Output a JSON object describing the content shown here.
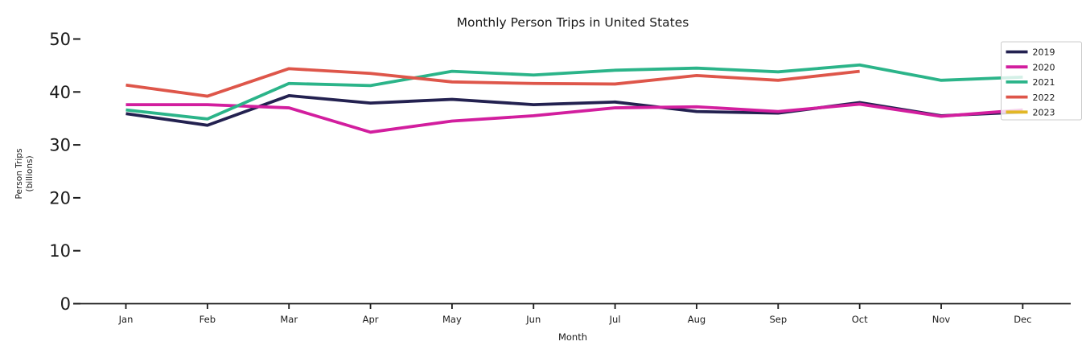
{
  "figure": {
    "background": "#ffffff",
    "text_color": "#1a1a1a",
    "axis_color": "#1a1a1a",
    "legend_border_color": "#cccccc"
  },
  "chart_data": {
    "type": "line",
    "title": "Monthly Person Trips in United States",
    "xlabel": "Month",
    "ylabel_lines": [
      "Person Trips",
      "(billions)"
    ],
    "categories": [
      "Jan",
      "Feb",
      "Mar",
      "Apr",
      "May",
      "Jun",
      "Jul",
      "Aug",
      "Sep",
      "Oct",
      "Nov",
      "Dec"
    ],
    "yticks": [
      0,
      10,
      20,
      30,
      40,
      50
    ],
    "ylim": [
      0,
      50
    ],
    "grid": false,
    "legend_position": "upper right",
    "legend_entries": [
      "2019",
      "2020",
      "2021",
      "2022",
      "2023"
    ],
    "series": [
      {
        "name": "2019",
        "color": "#232150",
        "values": [
          35.9,
          33.7,
          39.3,
          37.9,
          38.6,
          37.6,
          38.1,
          36.3,
          36.0,
          38.0,
          35.5,
          36.2
        ]
      },
      {
        "name": "2020",
        "color": "#d21e9e",
        "values": [
          37.6,
          37.6,
          37.0,
          32.4,
          34.5,
          35.5,
          37.0,
          37.2,
          36.3,
          37.7,
          35.4,
          36.6
        ]
      },
      {
        "name": "2021",
        "color": "#2bb489",
        "values": [
          36.6,
          34.9,
          41.6,
          41.2,
          43.9,
          43.2,
          44.1,
          44.5,
          43.8,
          45.1,
          42.2,
          42.8
        ]
      },
      {
        "name": "2022",
        "color": "#de564a",
        "values": [
          41.3,
          39.2,
          44.4,
          43.5,
          41.9,
          41.6,
          41.5,
          43.1,
          42.2,
          43.9,
          null,
          null
        ]
      },
      {
        "name": "2023",
        "color": "#e2b725",
        "values": [
          null,
          null,
          null,
          null,
          null,
          null,
          null,
          null,
          null,
          null,
          null,
          null
        ]
      }
    ]
  }
}
